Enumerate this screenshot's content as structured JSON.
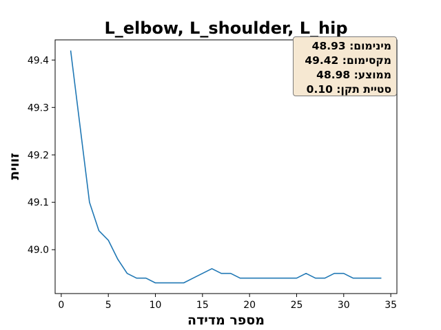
{
  "chart_data": {
    "type": "line",
    "title": "L_elbow, L_shoulder, L_hip",
    "xlabel": "מספר מדידה",
    "ylabel": "זווית",
    "xlim": [
      -0.65,
      35.65
    ],
    "ylim": [
      48.9075,
      49.4425
    ],
    "xticks": [
      0,
      5,
      10,
      15,
      20,
      25,
      30,
      35
    ],
    "yticks": [
      49.0,
      49.1,
      49.2,
      49.3,
      49.4
    ],
    "xtick_labels": [
      "0",
      "5",
      "10",
      "15",
      "20",
      "25",
      "30",
      "35"
    ],
    "ytick_labels": [
      "49.0",
      "49.1",
      "49.2",
      "49.3",
      "49.4"
    ],
    "grid": false,
    "line_color": "#1f77b4",
    "series": [
      {
        "x": [
          1,
          2,
          3,
          4,
          5,
          6,
          7,
          8,
          9,
          10,
          11,
          12,
          13,
          14,
          15,
          16,
          17,
          18,
          19,
          20,
          21,
          22,
          23,
          24,
          25,
          26,
          27,
          28,
          29,
          30,
          31,
          32,
          33,
          34
        ],
        "values": [
          49.42,
          49.26,
          49.1,
          49.04,
          49.02,
          48.98,
          48.95,
          48.94,
          48.94,
          48.93,
          48.93,
          48.93,
          48.93,
          48.94,
          48.95,
          48.96,
          48.95,
          48.95,
          48.94,
          48.94,
          48.94,
          48.94,
          48.94,
          48.94,
          48.94,
          48.95,
          48.94,
          48.94,
          48.95,
          48.95,
          48.94,
          48.94,
          48.94,
          48.94
        ]
      }
    ],
    "stats_box": {
      "placement": "top-right",
      "background": "#f6e8d2",
      "lines": [
        "מינימום: 48.93",
        "מקסימום: 49.42",
        "ממוצע: 48.98",
        "סטיית תקן: 0.10"
      ]
    }
  }
}
